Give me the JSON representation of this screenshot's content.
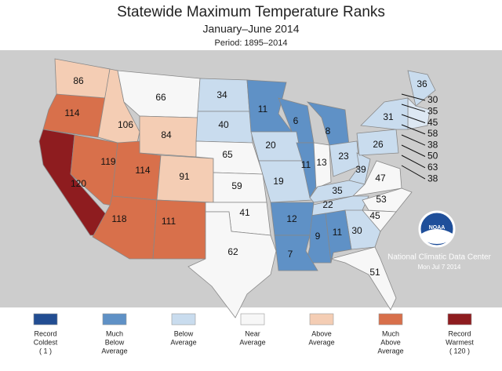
{
  "header": {
    "title": "Statewide Maximum Temperature Ranks",
    "subtitle": "January–June 2014",
    "period": "Period: 1895–2014"
  },
  "states": [
    {
      "rank": 86,
      "color": "#f4cdb4"
    },
    {
      "rank": 114,
      "color": "#d8704b"
    },
    {
      "rank": 120,
      "color": "#8e1c1f"
    },
    {
      "rank": 119,
      "color": "#d8704b"
    },
    {
      "rank": 106,
      "color": "#f4cdb4"
    },
    {
      "rank": 66,
      "color": "#f7f7f7"
    },
    {
      "rank": 84,
      "color": "#f4cdb4"
    },
    {
      "rank": 114,
      "color": "#d8704b"
    },
    {
      "rank": 91,
      "color": "#f4cdb4"
    },
    {
      "rank": 118,
      "color": "#d8704b"
    },
    {
      "rank": 111,
      "color": "#d8704b"
    },
    {
      "rank": 34,
      "color": "#c9dcee"
    },
    {
      "rank": 40,
      "color": "#c9dcee"
    },
    {
      "rank": 65,
      "color": "#f7f7f7"
    },
    {
      "rank": 59,
      "color": "#f7f7f7"
    },
    {
      "rank": 41,
      "color": "#f7f7f7"
    },
    {
      "rank": 62,
      "color": "#f7f7f7"
    },
    {
      "rank": 11,
      "color": "#5f91c6"
    },
    {
      "rank": 6,
      "color": "#5f91c6"
    },
    {
      "rank": 20,
      "color": "#c9dcee"
    },
    {
      "rank": 19,
      "color": "#c9dcee"
    },
    {
      "rank": 11,
      "color": "#5f91c6"
    },
    {
      "rank": 13,
      "color": "#f7f7f7"
    },
    {
      "rank": 8,
      "color": "#5f91c6"
    },
    {
      "rank": 23,
      "color": "#c9dcee"
    },
    {
      "rank": 39,
      "color": "#c9dcee"
    },
    {
      "rank": 26,
      "color": "#c9dcee"
    },
    {
      "rank": 31,
      "color": "#c9dcee"
    },
    {
      "rank": 36,
      "color": "#c9dcee"
    },
    {
      "rank": 35,
      "color": "#c9dcee"
    },
    {
      "rank": 47,
      "color": "#f7f7f7"
    },
    {
      "rank": 22,
      "color": "#c9dcee"
    },
    {
      "rank": 53,
      "color": "#f7f7f7"
    },
    {
      "rank": 45,
      "color": "#f7f7f7"
    },
    {
      "rank": 30,
      "color": "#c9dcee"
    },
    {
      "rank": 11,
      "color": "#5f91c6"
    },
    {
      "rank": 9,
      "color": "#5f91c6"
    },
    {
      "rank": 12,
      "color": "#5f91c6"
    },
    {
      "rank": 7,
      "color": "#5f91c6"
    },
    {
      "rank": 51,
      "color": "#f7f7f7"
    }
  ],
  "coast_labels": [
    30,
    35,
    45,
    58,
    38,
    50,
    63,
    38
  ],
  "legend": [
    {
      "lines": [
        "Record",
        "Coldest",
        "( 1 )"
      ],
      "color": "#224d92"
    },
    {
      "lines": [
        "Much",
        "Below",
        "Average"
      ],
      "color": "#5f91c6"
    },
    {
      "lines": [
        "Below",
        "Average"
      ],
      "color": "#c9dcee"
    },
    {
      "lines": [
        "Near",
        "Average"
      ],
      "color": "#f7f7f7"
    },
    {
      "lines": [
        "Above",
        "Average"
      ],
      "color": "#f4cdb4"
    },
    {
      "lines": [
        "Much",
        "Above",
        "Average"
      ],
      "color": "#d8704b"
    },
    {
      "lines": [
        "Record",
        "Warmest",
        "( 120 )"
      ],
      "color": "#8e1c1f"
    }
  ],
  "credit": {
    "logo": "NOAA",
    "org": "National Climatic Data Center",
    "date": "Mon Jul  7 2014"
  }
}
